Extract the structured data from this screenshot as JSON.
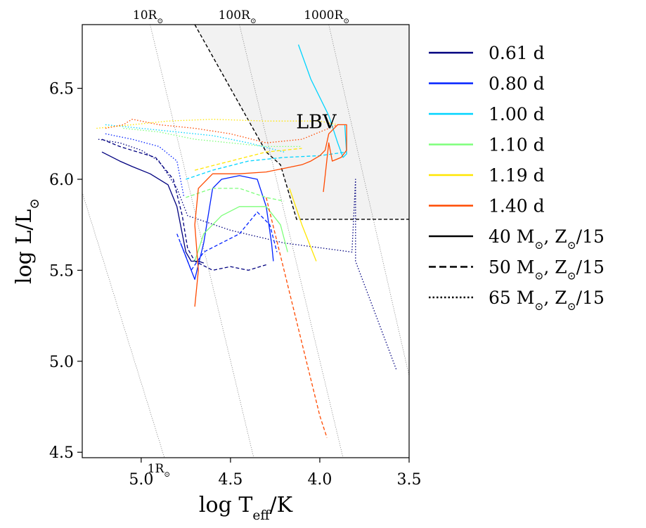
{
  "chart_data": {
    "type": "line",
    "xlabel": "log T_eff/K",
    "ylabel": "log L/L_⊙",
    "xlim": [
      5.33,
      3.5
    ],
    "ylim": [
      4.47,
      6.85
    ],
    "x_axis_inverted": true,
    "x_ticks": [
      {
        "value": 5.0,
        "label": "5.0"
      },
      {
        "value": 4.5,
        "label": "4.5"
      },
      {
        "value": 4.0,
        "label": "4.0"
      },
      {
        "value": 3.5,
        "label": "3.5"
      }
    ],
    "y_ticks": [
      {
        "value": 4.5,
        "label": "4.5"
      },
      {
        "value": 5.0,
        "label": "5.0"
      },
      {
        "value": 5.5,
        "label": "5.5"
      },
      {
        "value": 6.0,
        "label": "6.0"
      },
      {
        "value": 6.5,
        "label": "6.5"
      }
    ],
    "grid": false,
    "legend_position": "right, outside plot",
    "region": {
      "label": "LBV",
      "color": "#f2f2f2",
      "boundary_style": "dashed",
      "boundary": [
        [
          4.7,
          6.85
        ],
        [
          4.3,
          6.15
        ],
        [
          4.22,
          6.08
        ],
        [
          4.13,
          5.78
        ],
        [
          3.5,
          5.78
        ]
      ]
    },
    "radius_lines": [
      {
        "label": "1R_⊙",
        "points": [
          [
            5.4,
            6.15
          ],
          [
            4.87,
            4.47
          ]
        ]
      },
      {
        "label": "10R_⊙",
        "points": [
          [
            4.95,
            6.85
          ],
          [
            4.37,
            4.47
          ]
        ]
      },
      {
        "label": "100R_⊙",
        "points": [
          [
            4.45,
            6.85
          ],
          [
            3.87,
            4.47
          ]
        ]
      },
      {
        "label": "1000R_⊙",
        "points": [
          [
            3.95,
            6.85
          ],
          [
            3.5,
            4.92
          ]
        ]
      }
    ],
    "series": [
      {
        "name": "0.61 d",
        "color": "#00007f",
        "group": "period",
        "tracks": [
          {
            "style": "solid",
            "points": [
              [
                5.22,
                6.15
              ],
              [
                5.12,
                6.1
              ],
              [
                5.05,
                6.07
              ],
              [
                4.95,
                6.03
              ],
              [
                4.85,
                5.97
              ],
              [
                4.8,
                5.85
              ],
              [
                4.77,
                5.7
              ],
              [
                4.75,
                5.6
              ],
              [
                4.72,
                5.55
              ],
              [
                4.68,
                5.55
              ],
              [
                4.65,
                5.54
              ]
            ]
          },
          {
            "style": "dashed",
            "points": [
              [
                5.22,
                6.22
              ],
              [
                5.12,
                6.18
              ],
              [
                5.02,
                6.15
              ],
              [
                4.92,
                6.12
              ],
              [
                4.82,
                6.0
              ],
              [
                4.77,
                5.8
              ],
              [
                4.74,
                5.62
              ],
              [
                4.7,
                5.55
              ],
              [
                4.6,
                5.5
              ],
              [
                4.5,
                5.52
              ],
              [
                4.4,
                5.5
              ],
              [
                4.3,
                5.53
              ]
            ]
          },
          {
            "style": "dotted",
            "points": [
              [
                5.24,
                6.22
              ],
              [
                5.12,
                6.2
              ],
              [
                5.0,
                6.16
              ],
              [
                4.9,
                6.1
              ],
              [
                4.8,
                5.95
              ],
              [
                4.74,
                5.8
              ],
              [
                4.5,
                5.72
              ],
              [
                4.2,
                5.65
              ],
              [
                3.82,
                5.6
              ],
              [
                3.8,
                6.0
              ],
              [
                3.8,
                5.55
              ],
              [
                3.57,
                4.95
              ]
            ]
          }
        ]
      },
      {
        "name": "0.80 d",
        "color": "#0020ff",
        "group": "period",
        "tracks": [
          {
            "style": "solid",
            "points": [
              [
                4.78,
                5.65
              ],
              [
                4.7,
                5.45
              ],
              [
                4.65,
                5.65
              ],
              [
                4.6,
                5.95
              ],
              [
                4.55,
                6.0
              ],
              [
                4.45,
                6.02
              ],
              [
                4.35,
                6.0
              ],
              [
                4.3,
                5.85
              ],
              [
                4.27,
                5.65
              ],
              [
                4.26,
                5.55
              ]
            ]
          },
          {
            "style": "dashed",
            "points": [
              [
                4.8,
                5.7
              ],
              [
                4.72,
                5.5
              ],
              [
                4.65,
                5.6
              ],
              [
                4.55,
                5.65
              ],
              [
                4.45,
                5.7
              ],
              [
                4.35,
                5.82
              ],
              [
                4.28,
                5.75
              ],
              [
                4.24,
                5.6
              ]
            ]
          },
          {
            "style": "dotted",
            "points": [
              [
                5.2,
                6.25
              ],
              [
                5.05,
                6.22
              ],
              [
                4.9,
                6.18
              ],
              [
                4.8,
                6.1
              ],
              [
                4.76,
                5.9
              ]
            ]
          }
        ]
      },
      {
        "name": "1.00 d",
        "color": "#00d4ff",
        "group": "period",
        "tracks": [
          {
            "style": "solid",
            "points": [
              [
                4.12,
                6.74
              ],
              [
                4.05,
                6.55
              ],
              [
                3.95,
                6.35
              ],
              [
                3.9,
                6.2
              ],
              [
                3.87,
                6.12
              ],
              [
                3.85,
                6.14
              ],
              [
                3.86,
                6.3
              ]
            ]
          },
          {
            "style": "dashed",
            "points": [
              [
                4.75,
                6.0
              ],
              [
                4.6,
                6.05
              ],
              [
                4.4,
                6.1
              ],
              [
                4.2,
                6.12
              ],
              [
                4.0,
                6.13
              ],
              [
                3.85,
                6.15
              ]
            ]
          },
          {
            "style": "dotted",
            "points": [
              [
                5.2,
                6.3
              ],
              [
                5.0,
                6.28
              ],
              [
                4.8,
                6.26
              ],
              [
                4.6,
                6.24
              ],
              [
                4.4,
                6.2
              ],
              [
                4.2,
                6.15
              ]
            ]
          }
        ]
      },
      {
        "name": "1.10 d",
        "color": "#7dff7a",
        "group": "period",
        "tracks": [
          {
            "style": "solid",
            "points": [
              [
                4.7,
                5.55
              ],
              [
                4.65,
                5.7
              ],
              [
                4.55,
                5.8
              ],
              [
                4.45,
                5.85
              ],
              [
                4.3,
                5.85
              ],
              [
                4.22,
                5.75
              ],
              [
                4.18,
                5.6
              ]
            ]
          },
          {
            "style": "dashed",
            "points": [
              [
                4.75,
                5.9
              ],
              [
                4.6,
                5.95
              ],
              [
                4.45,
                5.95
              ],
              [
                4.3,
                5.9
              ],
              [
                4.2,
                5.88
              ]
            ]
          },
          {
            "style": "dotted",
            "points": [
              [
                5.1,
                6.28
              ],
              [
                4.9,
                6.26
              ],
              [
                4.7,
                6.22
              ],
              [
                4.5,
                6.2
              ],
              [
                4.3,
                6.18
              ],
              [
                4.1,
                6.18
              ]
            ]
          }
        ]
      },
      {
        "name": "1.19 d",
        "color": "#ffe600",
        "group": "period",
        "tracks": [
          {
            "style": "solid",
            "points": [
              [
                4.17,
                5.95
              ],
              [
                4.1,
                5.75
              ],
              [
                4.02,
                5.55
              ]
            ]
          },
          {
            "style": "dashed",
            "points": [
              [
                4.7,
                6.05
              ],
              [
                4.5,
                6.1
              ],
              [
                4.3,
                6.15
              ],
              [
                4.1,
                6.17
              ]
            ]
          },
          {
            "style": "dotted",
            "points": [
              [
                5.25,
                6.28
              ],
              [
                5.05,
                6.3
              ],
              [
                4.85,
                6.32
              ],
              [
                4.6,
                6.33
              ],
              [
                4.3,
                6.32
              ],
              [
                4.0,
                6.32
              ],
              [
                3.9,
                6.3
              ]
            ]
          }
        ]
      },
      {
        "name": "1.40 d",
        "color": "#ff4a00",
        "group": "period",
        "tracks": [
          {
            "style": "solid",
            "points": [
              [
                4.7,
                5.3
              ],
              [
                4.68,
                5.5
              ],
              [
                4.7,
                5.75
              ],
              [
                4.68,
                5.95
              ],
              [
                4.6,
                6.03
              ],
              [
                4.45,
                6.03
              ],
              [
                4.3,
                6.04
              ],
              [
                4.2,
                6.06
              ],
              [
                4.1,
                6.08
              ],
              [
                4.05,
                6.1
              ],
              [
                4.0,
                6.13
              ],
              [
                3.97,
                6.16
              ],
              [
                3.95,
                6.25
              ],
              [
                3.9,
                6.3
              ],
              [
                3.85,
                6.3
              ],
              [
                3.85,
                6.16
              ],
              [
                3.88,
                6.12
              ],
              [
                3.93,
                6.1
              ],
              [
                3.95,
                6.2
              ],
              [
                3.98,
                5.93
              ]
            ]
          },
          {
            "style": "dashed",
            "points": [
              [
                4.3,
                5.9
              ],
              [
                4.2,
                5.5
              ],
              [
                4.1,
                5.1
              ],
              [
                4.0,
                4.7
              ],
              [
                3.96,
                4.58
              ]
            ]
          },
          {
            "style": "dotted",
            "points": [
              [
                5.2,
                6.28
              ],
              [
                5.1,
                6.3
              ],
              [
                5.05,
                6.33
              ],
              [
                4.9,
                6.3
              ],
              [
                4.7,
                6.28
              ],
              [
                4.5,
                6.25
              ],
              [
                4.3,
                6.2
              ],
              [
                4.1,
                6.22
              ],
              [
                3.9,
                6.3
              ]
            ]
          }
        ]
      },
      {
        "name": "40 M_⊙, Z_⊙/15",
        "color": "#000000",
        "group": "model",
        "line_style": "solid"
      },
      {
        "name": "50 M_⊙, Z_⊙/15",
        "color": "#000000",
        "group": "model",
        "line_style": "dashed"
      },
      {
        "name": "65 M_⊙, Z_⊙/15",
        "color": "#000000",
        "group": "model",
        "line_style": "dotted"
      }
    ]
  }
}
